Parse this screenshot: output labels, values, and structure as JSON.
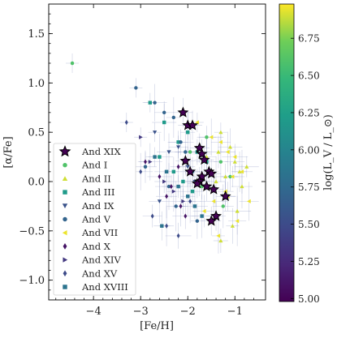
{
  "chart_data": {
    "type": "scatter",
    "xlabel": "[Fe/H]",
    "ylabel": "[α/Fe]",
    "xlim": [
      -4.95,
      -0.35
    ],
    "ylim": [
      -1.2,
      1.8
    ],
    "xticks": [
      -4,
      -3,
      -2,
      -1
    ],
    "yticks": [
      -1.0,
      -0.5,
      0.0,
      0.5,
      1.0,
      1.5
    ],
    "xtick_labels": [
      "−4",
      "−3",
      "−2",
      "−1"
    ],
    "ytick_labels": [
      "−1.0",
      "−0.5",
      "0.0",
      "0.5",
      "1.0",
      "1.5"
    ],
    "grid": false,
    "legend_position": "bottom-left",
    "colorbar": {
      "label": "log(L_V / L_⊙)",
      "range": [
        4.98,
        6.98
      ],
      "ticks": [
        5.0,
        5.25,
        5.5,
        5.75,
        6.0,
        6.25,
        6.5,
        6.75
      ],
      "tick_labels": [
        "5.00",
        "5.25",
        "5.50",
        "5.75",
        "6.00",
        "6.25",
        "6.50",
        "6.75"
      ],
      "colormap": "viridis"
    },
    "series": [
      {
        "name": "And XIX",
        "marker": "star",
        "logL": 4.98,
        "x": [
          -2.1,
          -2.0,
          -1.9,
          -1.75,
          -1.7,
          -1.65,
          -2.05,
          -1.95,
          -1.55,
          -1.5,
          -1.7,
          -1.75,
          -1.8,
          -1.6,
          -1.45,
          -1.4,
          -1.5,
          -1.2
        ],
        "y": [
          0.7,
          0.57,
          0.57,
          0.34,
          0.28,
          0.22,
          0.21,
          0.1,
          0.1,
          0.08,
          0.05,
          0.0,
          -0.02,
          -0.05,
          -0.08,
          -0.35,
          -0.4,
          -0.15
        ]
      },
      {
        "name": "And I",
        "marker": "circle",
        "logL": 6.6,
        "x": [
          -4.45,
          -1.95,
          -1.6,
          -1.3,
          -1.7,
          -1.25,
          -1.1
        ],
        "y": [
          1.2,
          0.3,
          0.45,
          0.2,
          -0.05,
          -0.25,
          0.05
        ]
      },
      {
        "name": "And II",
        "marker": "triangle",
        "logL": 6.9,
        "x": [
          -1.3,
          -1.1,
          -1.0,
          -0.9,
          -1.2,
          -0.85,
          -1.15,
          -0.95,
          -1.35,
          -1.4,
          -1.05,
          -0.75,
          -1.6,
          -1.3
        ],
        "y": [
          0.5,
          0.35,
          0.2,
          0.1,
          0.05,
          -0.05,
          -0.15,
          -0.3,
          0.3,
          0.0,
          -0.45,
          0.15,
          0.25,
          -0.6
        ]
      },
      {
        "name": "And III",
        "marker": "square",
        "logL": 6.2,
        "x": [
          -2.8,
          -2.5,
          -2.2,
          -2.0,
          -1.8,
          -1.6,
          -2.3,
          -2.6,
          -1.9,
          -2.1
        ],
        "y": [
          0.8,
          0.6,
          0.4,
          0.5,
          0.3,
          0.2,
          0.1,
          0.25,
          -0.1,
          0.0
        ]
      },
      {
        "name": "And IX",
        "marker": "triangle-down",
        "logL": 5.55,
        "x": [
          -2.7,
          -2.4,
          -2.2,
          -2.0,
          -1.85,
          -2.6
        ],
        "y": [
          0.5,
          0.3,
          0.35,
          0.15,
          0.0,
          -0.2
        ]
      },
      {
        "name": "And V",
        "marker": "circle",
        "logL": 5.7,
        "x": [
          -3.1,
          -2.7,
          -2.5,
          -2.3,
          -2.15,
          -2.05,
          -1.9,
          -2.4,
          -2.9,
          -2.25,
          -1.8
        ],
        "y": [
          0.95,
          0.8,
          0.7,
          0.65,
          0.4,
          0.3,
          0.1,
          -0.05,
          0.15,
          -0.25,
          -0.4
        ]
      },
      {
        "name": "And VII",
        "marker": "triangle-left",
        "logL": 6.95,
        "x": [
          -1.8,
          -1.5,
          -1.3,
          -1.15,
          -1.0,
          -0.85,
          -1.2,
          -1.45,
          -1.65,
          -0.95,
          -1.35,
          -1.05,
          -0.7
        ],
        "y": [
          0.6,
          0.45,
          0.4,
          0.3,
          0.25,
          0.1,
          -0.1,
          -0.2,
          -0.3,
          -0.4,
          -0.55,
          0.05,
          -0.2
        ]
      },
      {
        "name": "And X",
        "marker": "diamond",
        "logL": 5.1,
        "x": [
          -2.9,
          -2.6,
          -2.35,
          -2.15,
          -2.05,
          -2.45,
          -2.2
        ],
        "y": [
          0.2,
          0.05,
          -0.05,
          -0.25,
          -0.35,
          -0.15,
          0.15
        ]
      },
      {
        "name": "And XIV",
        "marker": "triangle-right",
        "logL": 5.35,
        "x": [
          -3.0,
          -2.8,
          -2.5,
          -2.3,
          -2.1
        ],
        "y": [
          0.45,
          0.2,
          0.0,
          -0.1,
          -0.2
        ]
      },
      {
        "name": "And XV",
        "marker": "diamond",
        "logL": 5.5,
        "x": [
          -3.3,
          -3.0,
          -2.75,
          -2.45,
          -2.2,
          -1.95
        ],
        "y": [
          0.6,
          0.1,
          -0.35,
          -0.45,
          -0.55,
          -0.2
        ]
      },
      {
        "name": "And XVIII",
        "marker": "square",
        "logL": 5.85,
        "x": [
          -2.7,
          -2.45,
          -2.2,
          -2.0,
          -1.85,
          -1.7,
          -2.55
        ],
        "y": [
          0.25,
          0.1,
          -0.05,
          -0.15,
          -0.25,
          -0.35,
          -0.45
        ]
      }
    ]
  }
}
